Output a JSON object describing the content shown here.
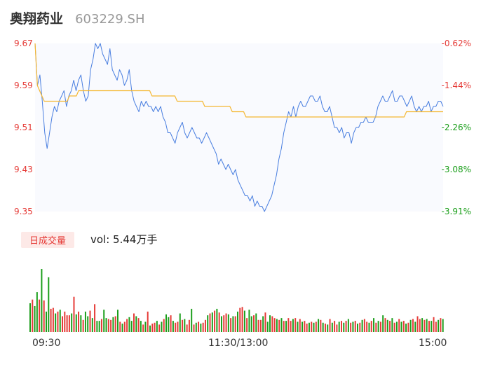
{
  "header": {
    "name": "奥翔药业",
    "code": "603229.SH"
  },
  "volume_badge": "日成交量",
  "volume_text": "vol: 5.44万手",
  "colors": {
    "price_line": "#4a7fe0",
    "avg_line": "#f5b731",
    "up": "#e53935",
    "down": "#1a9e1a"
  },
  "chart_data": [
    {
      "type": "line",
      "title": "",
      "yticks": [
        "9.67",
        "9.59",
        "9.51",
        "9.43",
        "9.35"
      ],
      "yticks_right": [
        "-0.62%",
        "-1.44%",
        "-2.26%",
        "-3.08%",
        "-3.91%"
      ],
      "ylim": [
        9.35,
        9.67
      ],
      "xticks": [
        "09:30",
        "11:30/13:00",
        "15:00"
      ],
      "series": [
        {
          "values": [
            9.67,
            9.59,
            9.61,
            9.56,
            9.5,
            9.47,
            9.5,
            9.53,
            9.55,
            9.54,
            9.56,
            9.57,
            9.58,
            9.55,
            9.57,
            9.58,
            9.6,
            9.58,
            9.6,
            9.61,
            9.58,
            9.56,
            9.57,
            9.62,
            9.64,
            9.67,
            9.66,
            9.67,
            9.65,
            9.64,
            9.63,
            9.66,
            9.62,
            9.61,
            9.6,
            9.62,
            9.61,
            9.59,
            9.6,
            9.62,
            9.58,
            9.56,
            9.55,
            9.54,
            9.56,
            9.55,
            9.56,
            9.55,
            9.55,
            9.54,
            9.55,
            9.54,
            9.55,
            9.53,
            9.52,
            9.5,
            9.5,
            9.49,
            9.48,
            9.5,
            9.51,
            9.52,
            9.5,
            9.49,
            9.5,
            9.51,
            9.5,
            9.49,
            9.49,
            9.48,
            9.49,
            9.5,
            9.49,
            9.48,
            9.47,
            9.46,
            9.44,
            9.45,
            9.44,
            9.43,
            9.44,
            9.43,
            9.42,
            9.43,
            9.41,
            9.4,
            9.39,
            9.38,
            9.38,
            9.37,
            9.38,
            9.36,
            9.37,
            9.36,
            9.36,
            9.35,
            9.36,
            9.37,
            9.38,
            9.4,
            9.42,
            9.45,
            9.47,
            9.5,
            9.52,
            9.54,
            9.53,
            9.55,
            9.53,
            9.55,
            9.56,
            9.55,
            9.55,
            9.56,
            9.57,
            9.57,
            9.56,
            9.56,
            9.57,
            9.55,
            9.54,
            9.54,
            9.55,
            9.53,
            9.51,
            9.51,
            9.5,
            9.51,
            9.49,
            9.5,
            9.5,
            9.48,
            9.5,
            9.51,
            9.51,
            9.52,
            9.52,
            9.53,
            9.52,
            9.52,
            9.52,
            9.53,
            9.55,
            9.56,
            9.57,
            9.56,
            9.56,
            9.57,
            9.58,
            9.56,
            9.56,
            9.57,
            9.57,
            9.56,
            9.55,
            9.56,
            9.57,
            9.55,
            9.54,
            9.55,
            9.54,
            9.55,
            9.55,
            9.56,
            9.54,
            9.55,
            9.55,
            9.56,
            9.56,
            9.55
          ]
        },
        {
          "values": [
            9.67,
            9.59,
            9.58,
            9.57,
            9.56,
            9.56,
            9.56,
            9.56,
            9.56,
            9.56,
            9.56,
            9.56,
            9.56,
            9.56,
            9.56,
            9.57,
            9.57,
            9.57,
            9.57,
            9.58,
            9.58,
            9.58,
            9.58,
            9.58,
            9.58,
            9.58,
            9.58,
            9.58,
            9.58,
            9.58,
            9.58,
            9.58,
            9.58,
            9.58,
            9.58,
            9.58,
            9.58,
            9.58,
            9.58,
            9.58,
            9.58,
            9.58,
            9.58,
            9.58,
            9.58,
            9.58,
            9.58,
            9.58,
            9.58,
            9.58,
            9.58,
            9.57,
            9.57,
            9.57,
            9.57,
            9.57,
            9.57,
            9.57,
            9.57,
            9.57,
            9.57,
            9.57,
            9.56,
            9.56,
            9.56,
            9.56,
            9.56,
            9.56,
            9.56,
            9.56,
            9.56,
            9.56,
            9.56,
            9.56,
            9.55,
            9.55,
            9.55,
            9.55,
            9.55,
            9.55,
            9.55,
            9.55,
            9.55,
            9.55,
            9.55,
            9.55,
            9.54,
            9.54,
            9.54,
            9.54,
            9.54,
            9.54,
            9.53,
            9.53,
            9.53,
            9.53,
            9.53,
            9.53,
            9.53,
            9.53,
            9.53,
            9.53,
            9.53,
            9.53,
            9.53,
            9.53,
            9.53,
            9.53,
            9.53,
            9.53,
            9.53,
            9.53,
            9.53,
            9.53,
            9.53,
            9.53,
            9.53,
            9.53,
            9.53,
            9.53,
            9.53,
            9.53,
            9.53,
            9.53,
            9.53,
            9.53,
            9.53,
            9.53,
            9.53,
            9.53,
            9.53,
            9.53,
            9.53,
            9.53,
            9.53,
            9.53,
            9.53,
            9.53,
            9.53,
            9.53,
            9.53,
            9.53,
            9.53,
            9.53,
            9.53,
            9.53,
            9.53,
            9.53,
            9.53,
            9.53,
            9.53,
            9.53,
            9.53,
            9.53,
            9.53,
            9.53,
            9.53,
            9.53,
            9.53,
            9.53,
            9.53,
            9.53,
            9.54,
            9.54,
            9.54,
            9.54,
            9.54,
            9.54,
            9.54,
            9.54,
            9.54,
            9.54,
            9.54,
            9.54,
            9.54,
            9.54,
            9.54,
            9.54,
            9.54
          ]
        }
      ]
    },
    {
      "type": "bar",
      "title": "",
      "values": [
        31,
        35,
        28,
        43,
        35,
        68,
        34,
        22,
        59,
        25,
        26,
        20,
        22,
        24,
        17,
        22,
        18,
        18,
        20,
        38,
        19,
        22,
        18,
        13,
        22,
        17,
        23,
        15,
        30,
        12,
        12,
        14,
        24,
        15,
        14,
        13,
        16,
        17,
        24,
        11,
        9,
        11,
        14,
        16,
        12,
        20,
        17,
        15,
        12,
        8,
        11,
        22,
        7,
        9,
        10,
        12,
        8,
        11,
        14,
        19,
        16,
        18,
        12,
        10,
        11,
        20,
        13,
        14,
        8,
        13,
        25,
        8,
        10,
        11,
        9,
        10,
        13,
        18,
        20,
        21,
        23,
        25,
        21,
        17,
        18,
        20,
        19,
        15,
        17,
        17,
        22,
        26,
        27,
        23,
        15,
        24,
        17,
        18,
        20,
        13,
        13,
        17,
        21,
        11,
        18,
        17,
        15,
        14,
        13,
        15,
        12,
        12,
        15,
        12,
        14,
        15,
        11,
        14,
        11,
        12,
        9,
        10,
        11,
        10,
        11,
        14,
        13,
        10,
        9,
        8,
        14,
        10,
        12,
        8,
        11,
        12,
        10,
        12,
        14,
        10,
        11,
        12,
        9,
        10,
        13,
        14,
        11,
        10,
        12,
        15,
        10,
        12,
        11,
        18,
        15,
        13,
        12,
        15,
        10,
        11,
        14,
        11,
        12,
        9,
        10,
        13,
        14,
        11,
        17,
        14,
        15,
        13,
        14,
        12,
        12,
        16,
        11,
        13,
        15,
        14
      ],
      "directions": [
        "down",
        "up",
        "down",
        "down",
        "up",
        "down",
        "up",
        "down",
        "down",
        "up",
        "up",
        "down",
        "up",
        "down",
        "up",
        "up",
        "up",
        "up",
        "down",
        "up",
        "down",
        "up",
        "down",
        "up",
        "down",
        "down",
        "up",
        "down",
        "up",
        "down",
        "down",
        "up",
        "down",
        "down",
        "up",
        "up",
        "down",
        "up",
        "down",
        "up",
        "down",
        "up",
        "up",
        "down",
        "down",
        "up",
        "down",
        "up",
        "down",
        "up",
        "down",
        "up",
        "down",
        "up",
        "up",
        "down",
        "up",
        "down",
        "up",
        "down",
        "down",
        "up",
        "down",
        "up",
        "up",
        "down",
        "up",
        "down",
        "up",
        "up",
        "down",
        "up",
        "down",
        "up",
        "down",
        "up",
        "up",
        "down",
        "up",
        "down",
        "up",
        "down",
        "up",
        "down",
        "up",
        "up",
        "down",
        "up",
        "down",
        "up",
        "down",
        "up",
        "up",
        "down",
        "up",
        "down",
        "down",
        "up",
        "down",
        "up",
        "up",
        "down",
        "up",
        "down",
        "down",
        "up",
        "up",
        "down",
        "up",
        "down",
        "up",
        "down",
        "up",
        "up",
        "down",
        "up",
        "down",
        "up",
        "down",
        "up",
        "up",
        "down",
        "up",
        "down",
        "up",
        "down",
        "up",
        "down",
        "up",
        "down",
        "up",
        "down",
        "up",
        "up",
        "down",
        "up",
        "down",
        "up",
        "down",
        "up",
        "down",
        "up",
        "down",
        "up",
        "down",
        "up",
        "up",
        "down",
        "up",
        "down",
        "up",
        "down",
        "up",
        "down",
        "up",
        "down",
        "up",
        "down",
        "up",
        "down",
        "up",
        "down",
        "up",
        "down",
        "up",
        "down",
        "up",
        "down",
        "up",
        "up",
        "down",
        "up",
        "down",
        "up",
        "down",
        "up",
        "up",
        "down",
        "up",
        "down",
        "up",
        "up"
      ]
    }
  ]
}
